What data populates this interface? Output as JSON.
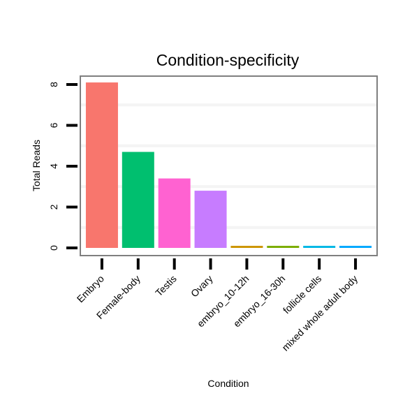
{
  "chart_data": {
    "type": "bar",
    "title": "Condition-specificity",
    "xlabel": "Condition",
    "ylabel": "Total Reads",
    "categories": [
      "Embryo",
      "Female-body",
      "Testis",
      "Ovary",
      "embryo_10-12h",
      "embryo_16-30h",
      "follicle cells",
      "mixed whole adult body"
    ],
    "values": [
      8.1,
      4.7,
      3.4,
      2.8,
      0.1,
      0.1,
      0.1,
      0.1
    ],
    "colors": [
      "#F8766D",
      "#00BF6F",
      "#FF62D1",
      "#C77CFF",
      "#CD9600",
      "#7CAE00",
      "#00B8E5",
      "#00A9FF"
    ],
    "ylim": [
      0,
      8.5
    ],
    "yticks": [
      0,
      2,
      4,
      6,
      8
    ],
    "grid": true,
    "legend": "none"
  }
}
